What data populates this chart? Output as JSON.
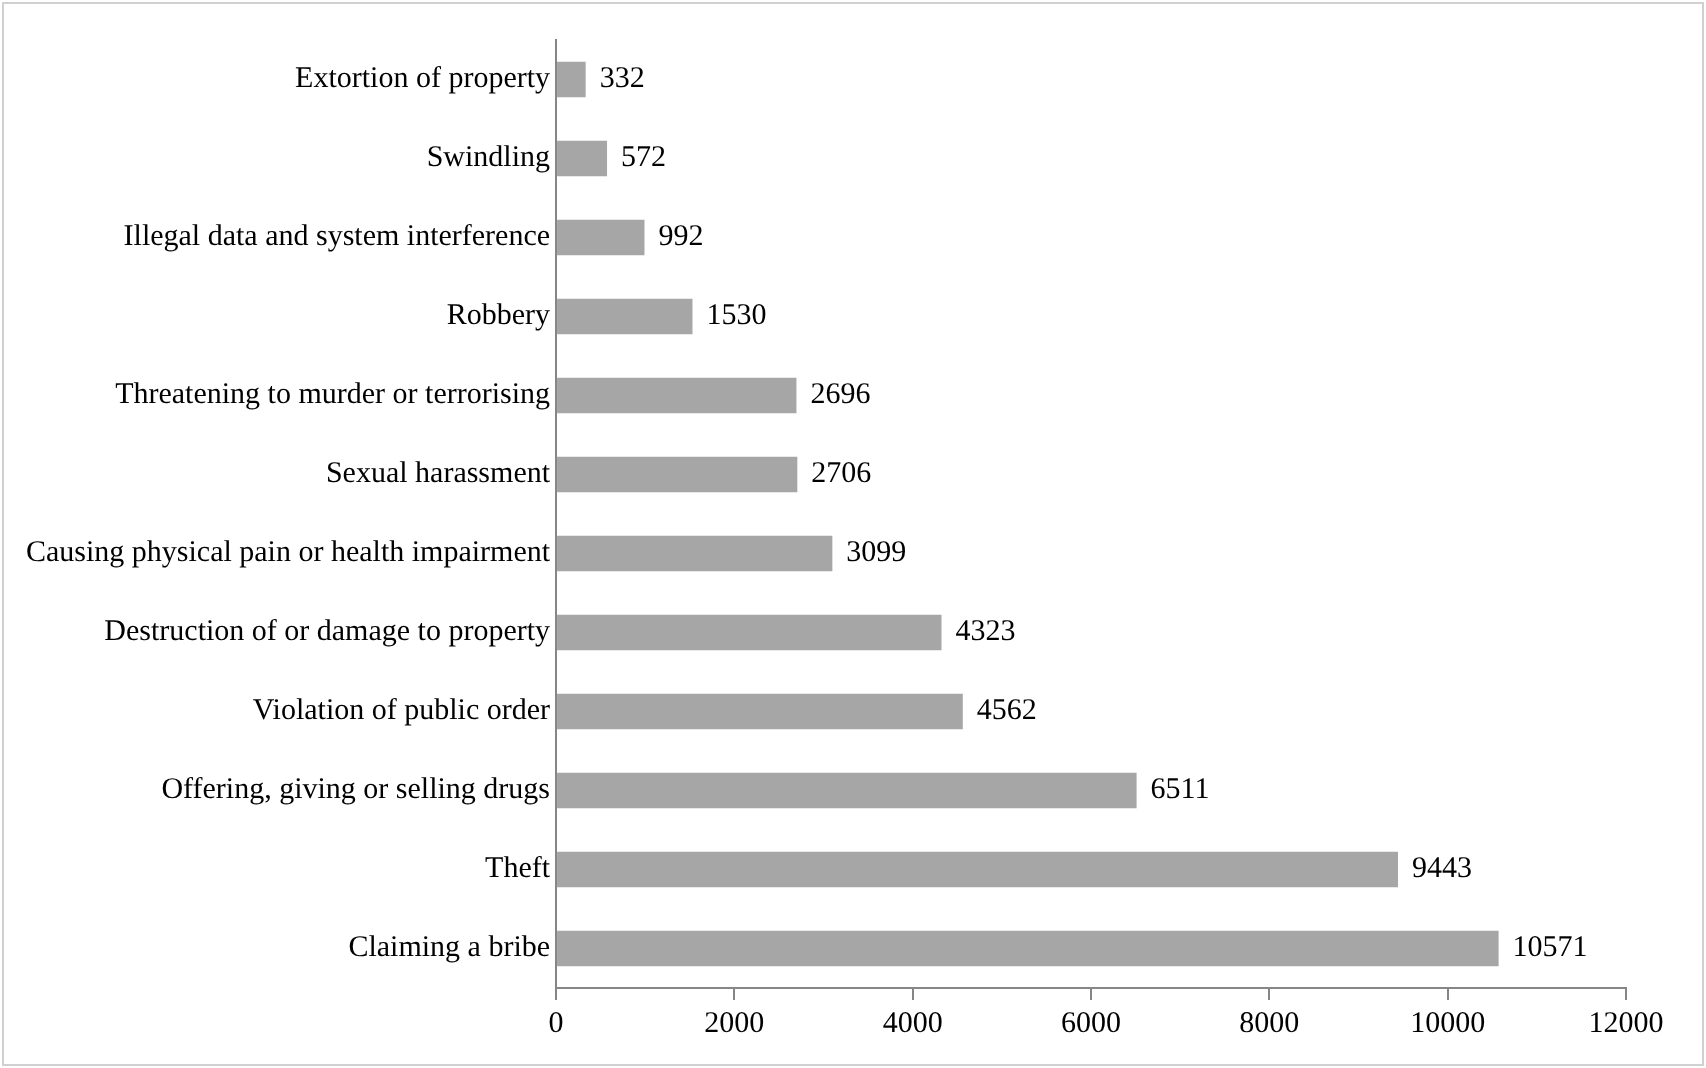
{
  "chart_data": {
    "type": "bar",
    "orientation": "horizontal",
    "categories": [
      "Extortion of property",
      "Swindling",
      "Illegal data and system interference",
      "Robbery",
      "Threatening to murder or terrorising",
      "Sexual harassment",
      "Causing physical pain or health impairment",
      "Destruction of or damage to property",
      "Violation of public order",
      "Offering, giving or selling drugs",
      "Theft",
      "Claiming a bribe"
    ],
    "values": [
      332,
      572,
      992,
      1530,
      2696,
      2706,
      3099,
      4323,
      4562,
      6511,
      9443,
      10571
    ],
    "color": "#a6a6a6",
    "xlim": [
      0,
      12000
    ],
    "xticks": [
      0,
      2000,
      4000,
      6000,
      8000,
      10000,
      12000
    ],
    "grid": false,
    "legend": false,
    "data_labels": true
  }
}
